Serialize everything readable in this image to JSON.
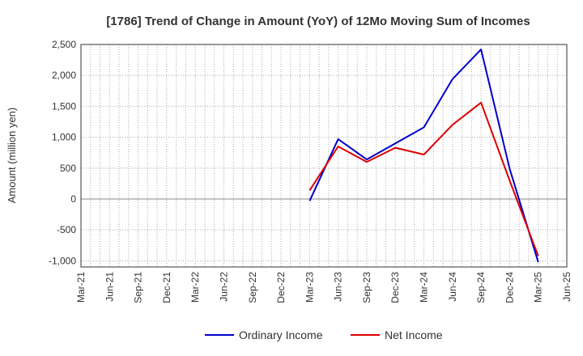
{
  "chart_data": {
    "type": "line",
    "title": "[1786]  Trend of Change in Amount (YoY) of 12Mo Moving Sum of Incomes",
    "ylabel": "Amount (million yen)",
    "xlabel": "",
    "ylim": [
      -1100,
      2500
    ],
    "yticks": [
      2500,
      2000,
      1500,
      1000,
      500,
      0,
      -500,
      -1000
    ],
    "ytick_labels": [
      "2,500",
      "2,000",
      "1,500",
      "1,000",
      "500",
      "0",
      "-500",
      "-1,000"
    ],
    "xtick_labels": [
      "Mar-21",
      "Jun-21",
      "Sep-21",
      "Dec-21",
      "Mar-22",
      "Jun-22",
      "Sep-22",
      "Dec-22",
      "Mar-23",
      "Jun-23",
      "Sep-23",
      "Dec-23",
      "Mar-24",
      "Jun-24",
      "Sep-24",
      "Dec-24",
      "Mar-25",
      "Jun-25"
    ],
    "grid": true,
    "legend_position": "bottom",
    "series": [
      {
        "name": "Ordinary Income",
        "color": "#0000cc",
        "points": [
          {
            "x": "Mar-23",
            "y": -30
          },
          {
            "x": "Jun-23",
            "y": 970
          },
          {
            "x": "Sep-23",
            "y": 640
          },
          {
            "x": "Dec-23",
            "y": 900
          },
          {
            "x": "Mar-24",
            "y": 1160
          },
          {
            "x": "Jun-24",
            "y": 1940
          },
          {
            "x": "Sep-24",
            "y": 2420
          },
          {
            "x": "Dec-24",
            "y": 490
          },
          {
            "x": "Mar-25",
            "y": -1020
          }
        ]
      },
      {
        "name": "Net Income",
        "color": "#dd0000",
        "points": [
          {
            "x": "Mar-23",
            "y": 140
          },
          {
            "x": "Jun-23",
            "y": 850
          },
          {
            "x": "Sep-23",
            "y": 600
          },
          {
            "x": "Dec-23",
            "y": 830
          },
          {
            "x": "Mar-24",
            "y": 720
          },
          {
            "x": "Jun-24",
            "y": 1200
          },
          {
            "x": "Sep-24",
            "y": 1560
          },
          {
            "x": "Dec-24",
            "y": 300
          },
          {
            "x": "Mar-25",
            "y": -920
          }
        ]
      }
    ]
  }
}
